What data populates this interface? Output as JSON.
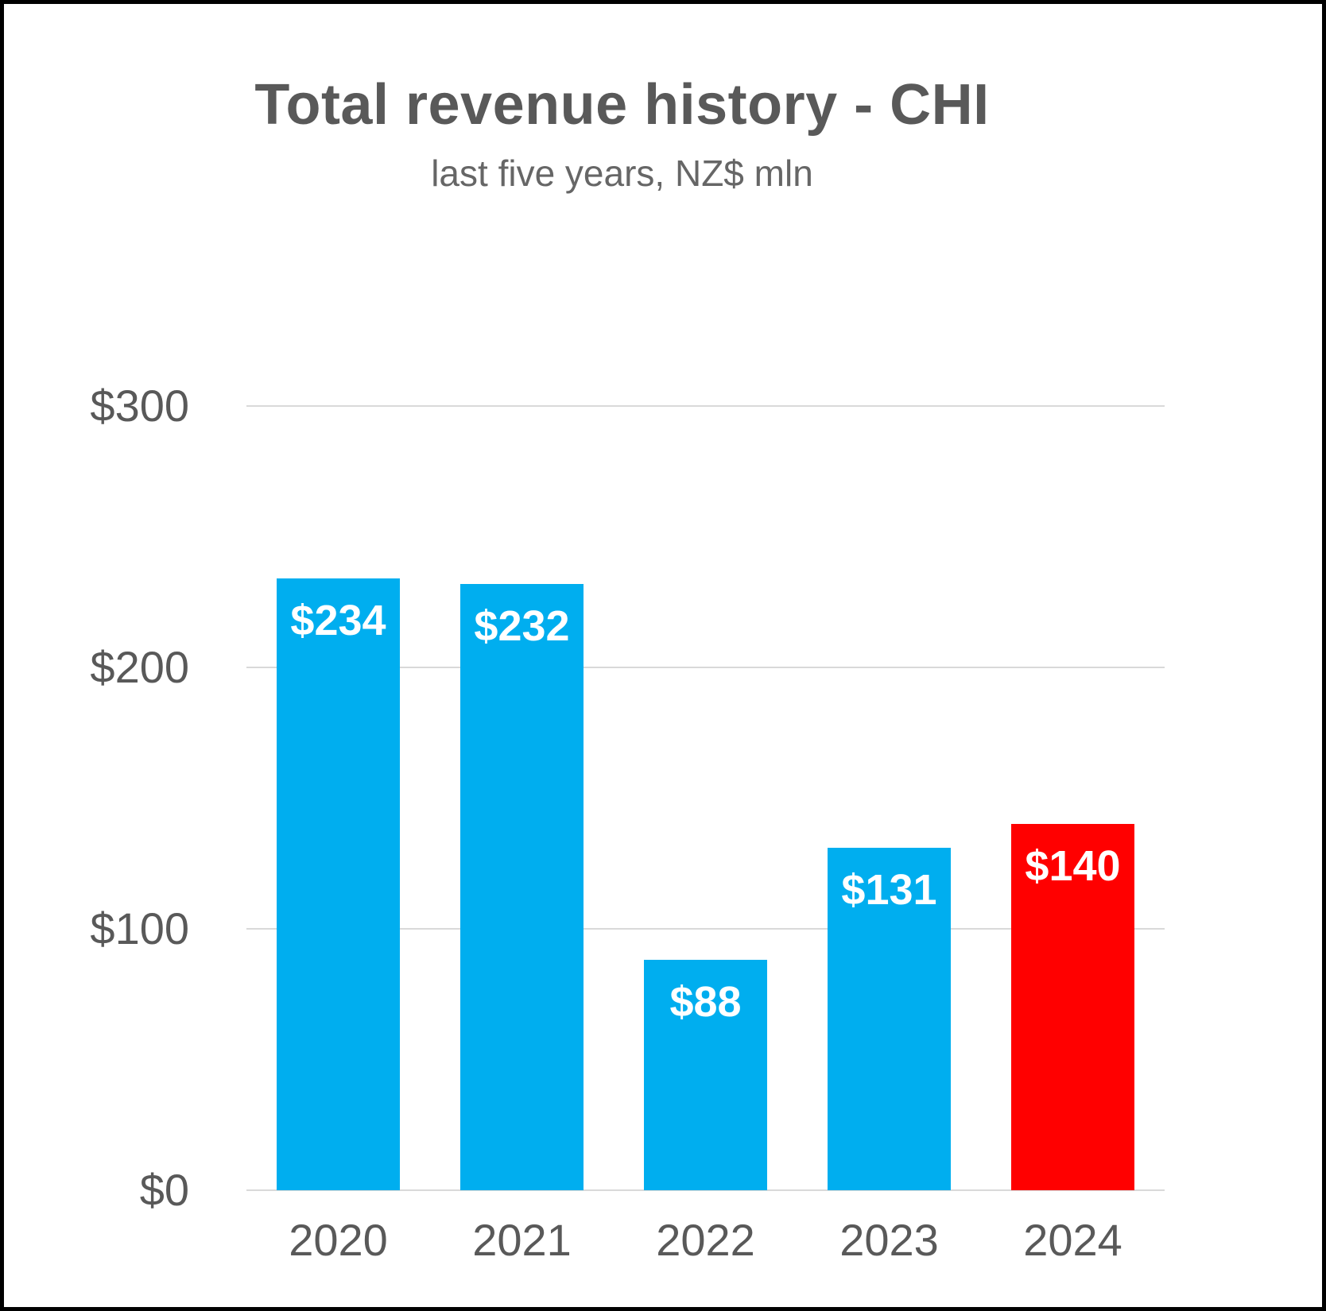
{
  "chart_data": {
    "type": "bar",
    "title": "Total revenue history - CHI",
    "subtitle": "last five years, NZ$ mln",
    "categories": [
      "2020",
      "2021",
      "2022",
      "2023",
      "2024"
    ],
    "values": [
      234,
      232,
      88,
      131,
      140
    ],
    "data_labels": [
      "$234",
      "$232",
      "$88",
      "$131",
      "$140"
    ],
    "bar_colors": [
      "#00AEEF",
      "#00AEEF",
      "#00AEEF",
      "#00AEEF",
      "#FF0000"
    ],
    "highlight_index": 4,
    "ylim": [
      0,
      300
    ],
    "yticks": [
      {
        "value": 0,
        "label": "$0"
      },
      {
        "value": 100,
        "label": "$100"
      },
      {
        "value": 200,
        "label": "$200"
      },
      {
        "value": 300,
        "label": "$300"
      }
    ],
    "xlabel": "",
    "ylabel": "",
    "grid": true,
    "legend_position": "none",
    "colors": {
      "bar_default": "#00AEEF",
      "bar_highlight": "#FF0000",
      "title_text": "#595959",
      "axis_text": "#595959",
      "value_label_text": "#FFFFFF",
      "gridline": "#D9D9D9",
      "background": "#FFFFFF",
      "border": "#000000"
    }
  }
}
